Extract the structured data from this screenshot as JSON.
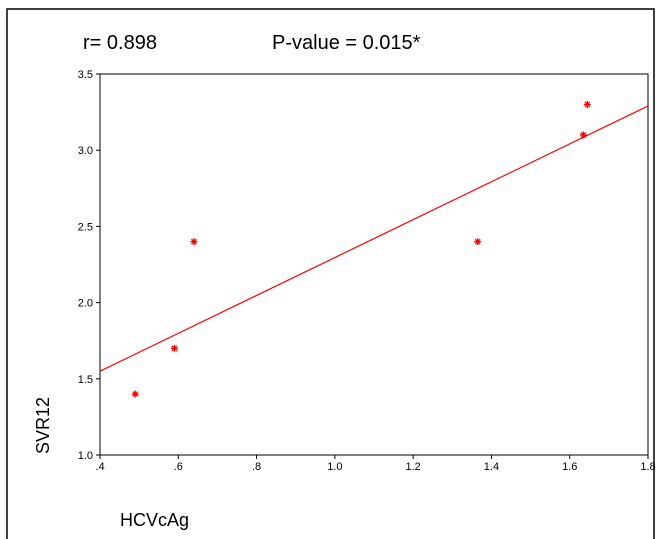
{
  "annotations": {
    "r_text": "r=  0.898",
    "p_text": "P-value = 0.015*"
  },
  "chart_data": {
    "type": "scatter",
    "title": "",
    "xlabel": "HCVcAg",
    "ylabel": "SVR12",
    "xlim": [
      0.4,
      1.8
    ],
    "ylim": [
      1.0,
      3.5
    ],
    "x_ticks": [
      0.4,
      0.6,
      0.8,
      1.0,
      1.2,
      1.4,
      1.6,
      1.8
    ],
    "x_tick_labels": [
      ".4",
      ".6",
      ".8",
      "1.0",
      "1.2",
      "1.4",
      "1.6",
      "1.8"
    ],
    "y_ticks": [
      1.0,
      1.5,
      2.0,
      2.5,
      3.0,
      3.5
    ],
    "y_tick_labels": [
      "1.0",
      "1.5",
      "2.0",
      "2.5",
      "3.0",
      "3.5"
    ],
    "grid": false,
    "legend": "none",
    "series": [
      {
        "points": [
          {
            "x": 0.49,
            "y": 1.4
          },
          {
            "x": 0.59,
            "y": 1.7
          },
          {
            "x": 0.64,
            "y": 2.4
          },
          {
            "x": 1.365,
            "y": 2.4
          },
          {
            "x": 1.635,
            "y": 3.1
          },
          {
            "x": 1.645,
            "y": 3.3
          }
        ],
        "color": "#ff0000"
      }
    ],
    "fit_line": {
      "x_start": 0.4,
      "y_start": 1.55,
      "x_end": 1.8,
      "y_end": 3.29,
      "color": "#ff0000"
    }
  }
}
